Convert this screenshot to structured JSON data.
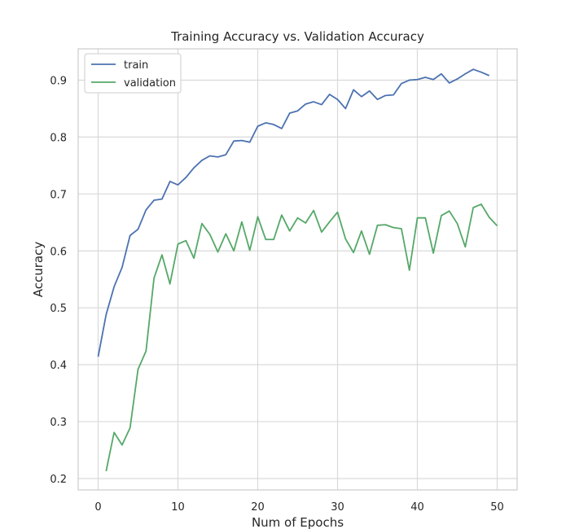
{
  "chart_data": {
    "type": "line",
    "title": "Training Accuracy vs. Validation Accuracy",
    "xlabel": "Num of Epochs",
    "ylabel": "Accuracy",
    "xlim": [
      -2.5,
      52.5
    ],
    "ylim": [
      0.18,
      0.955
    ],
    "xticks": [
      0,
      10,
      20,
      30,
      40,
      50
    ],
    "yticks": [
      0.2,
      0.3,
      0.4,
      0.5,
      0.6,
      0.7,
      0.8,
      0.9
    ],
    "grid": true,
    "legend_position": "upper-left",
    "series": [
      {
        "name": "train",
        "color": "#4c72b0",
        "x": [
          0,
          1,
          2,
          3,
          4,
          5,
          6,
          7,
          8,
          9,
          10,
          11,
          12,
          13,
          14,
          15,
          16,
          17,
          18,
          19,
          20,
          21,
          22,
          23,
          24,
          25,
          26,
          27,
          28,
          29,
          30,
          31,
          32,
          33,
          34,
          35,
          36,
          37,
          38,
          39,
          40,
          41,
          42,
          43,
          44,
          45,
          46,
          47,
          48,
          49
        ],
        "values": [
          0.414,
          0.488,
          0.537,
          0.571,
          0.627,
          0.638,
          0.672,
          0.689,
          0.691,
          0.722,
          0.716,
          0.729,
          0.746,
          0.759,
          0.767,
          0.765,
          0.769,
          0.793,
          0.794,
          0.791,
          0.819,
          0.825,
          0.822,
          0.815,
          0.842,
          0.846,
          0.858,
          0.862,
          0.857,
          0.875,
          0.866,
          0.85,
          0.883,
          0.871,
          0.881,
          0.866,
          0.873,
          0.874,
          0.894,
          0.9,
          0.901,
          0.905,
          0.901,
          0.911,
          0.895,
          0.902,
          0.911,
          0.919,
          0.914,
          0.908
        ]
      },
      {
        "name": "validation",
        "color": "#55a868",
        "x": [
          1,
          2,
          3,
          4,
          5,
          6,
          7,
          8,
          9,
          10,
          11,
          12,
          13,
          14,
          15,
          16,
          17,
          18,
          19,
          20,
          21,
          22,
          23,
          24,
          25,
          26,
          27,
          28,
          29,
          30,
          31,
          32,
          33,
          34,
          35,
          36,
          37,
          38,
          39,
          40,
          41,
          42,
          43,
          44,
          45,
          46,
          47,
          48,
          49,
          50
        ],
        "values": [
          0.213,
          0.281,
          0.259,
          0.289,
          0.392,
          0.424,
          0.552,
          0.593,
          0.542,
          0.612,
          0.618,
          0.587,
          0.648,
          0.629,
          0.598,
          0.63,
          0.6,
          0.651,
          0.601,
          0.66,
          0.62,
          0.62,
          0.663,
          0.635,
          0.658,
          0.649,
          0.671,
          0.633,
          0.651,
          0.668,
          0.621,
          0.597,
          0.635,
          0.594,
          0.645,
          0.646,
          0.641,
          0.639,
          0.566,
          0.658,
          0.658,
          0.596,
          0.662,
          0.67,
          0.648,
          0.607,
          0.676,
          0.682,
          0.659,
          0.644
        ]
      }
    ]
  }
}
